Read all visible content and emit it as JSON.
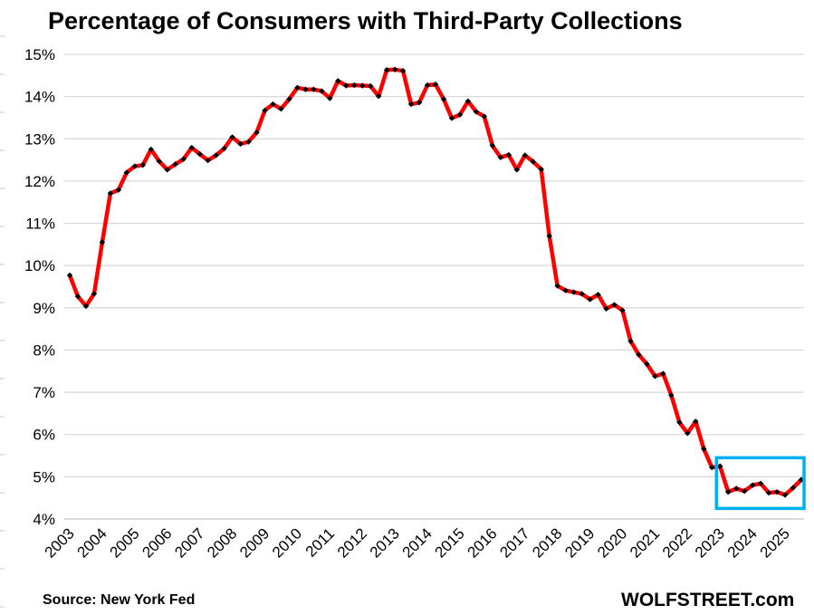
{
  "title": "Percentage of Consumers with Third-Party Collections",
  "source": "Source: New York Fed",
  "brand": "WOLFSTREET.com",
  "colors": {
    "line": "#ff0000",
    "marker": "#000000",
    "grid": "#d9d9d9",
    "highlight_box": "#00b0f0"
  },
  "chart_data": {
    "type": "line",
    "title": "Percentage of Consumers with Third-Party Collections",
    "xlabel": "",
    "ylabel": "",
    "ylim": [
      4,
      15
    ],
    "y_ticks": [
      "4%",
      "5%",
      "6%",
      "7%",
      "8%",
      "9%",
      "10%",
      "11%",
      "12%",
      "13%",
      "14%",
      "15%"
    ],
    "x_ticks": [
      "2003",
      "2004",
      "2005",
      "2006",
      "2007",
      "2008",
      "2009",
      "2010",
      "2011",
      "2012",
      "2013",
      "2014",
      "2015",
      "2016",
      "2017",
      "2018",
      "2019",
      "2020",
      "2021",
      "2022",
      "2023",
      "2024",
      "2025"
    ],
    "grid": "horizontal",
    "legend": "none",
    "x_start": "2003-Q1",
    "frequency": "quarterly",
    "highlight": {
      "x_from": "2023-Q1",
      "x_to": "2025-Q2",
      "y_from": 4.25,
      "y_to": 5.45
    },
    "series": [
      {
        "values": [
          9.77,
          9.27,
          9.04,
          9.33,
          10.55,
          11.71,
          11.79,
          12.2,
          12.35,
          12.38,
          12.75,
          12.47,
          12.27,
          12.4,
          12.52,
          12.79,
          12.64,
          12.49,
          12.61,
          12.77,
          13.04,
          12.88,
          12.93,
          13.15,
          13.67,
          13.82,
          13.71,
          13.94,
          14.21,
          14.17,
          14.17,
          14.13,
          13.96,
          14.37,
          14.26,
          14.27,
          14.26,
          14.25,
          14.01,
          14.63,
          14.64,
          14.61,
          13.82,
          13.86,
          14.27,
          14.29,
          13.94,
          13.49,
          13.57,
          13.89,
          13.64,
          13.53,
          12.84,
          12.56,
          12.62,
          12.27,
          12.61,
          12.46,
          12.28,
          10.7,
          9.52,
          9.41,
          9.37,
          9.33,
          9.2,
          9.31,
          8.98,
          9.07,
          8.94,
          8.21,
          7.89,
          7.67,
          7.38,
          7.44,
          6.93,
          6.29,
          6.03,
          6.31,
          5.66,
          5.22,
          5.25,
          4.64,
          4.72,
          4.66,
          4.8,
          4.84,
          4.62,
          4.64,
          4.57,
          4.74,
          4.93
        ]
      }
    ]
  }
}
